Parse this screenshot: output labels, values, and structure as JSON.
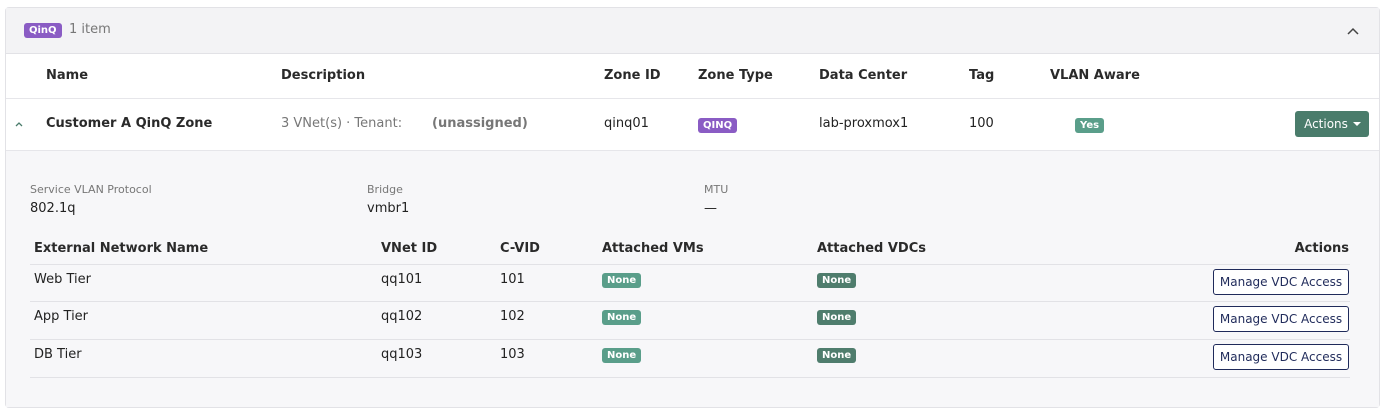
{
  "header": {
    "badge": "QinQ",
    "count": "1 item"
  },
  "columns": [
    "Name",
    "Description",
    "Zone ID",
    "Zone Type",
    "Data Center",
    "Tag",
    "VLAN Aware"
  ],
  "row": {
    "name": "Customer A QinQ Zone",
    "description": "3 VNet(s) · Tenant:",
    "tenant": "(unassigned)",
    "zone_id": "qinq01",
    "zone_type": "QINQ",
    "data_center": "lab-proxmox1",
    "tag": "100",
    "vlan_aware": "Yes",
    "action": "Actions"
  },
  "details": {
    "properties": [
      {
        "label": "Service VLAN Protocol",
        "value": "802.1q"
      },
      {
        "label": "Bridge",
        "value": "vmbr1"
      },
      {
        "label": "MTU",
        "value": "—"
      }
    ],
    "table": {
      "headers": [
        "External Network Name",
        "VNet ID",
        "C-VID",
        "Attached VMs",
        "Attached VDCs",
        "Actions"
      ],
      "rows": [
        [
          "Web Tier",
          "qq101",
          "101",
          "None",
          "None",
          "Manage VDC Access"
        ],
        [
          "App Tier",
          "qq102",
          "102",
          "None",
          "None",
          "Manage VDC Access"
        ],
        [
          "DB Tier",
          "qq103",
          "103",
          "None",
          "None",
          "Manage VDC Access"
        ]
      ]
    }
  }
}
